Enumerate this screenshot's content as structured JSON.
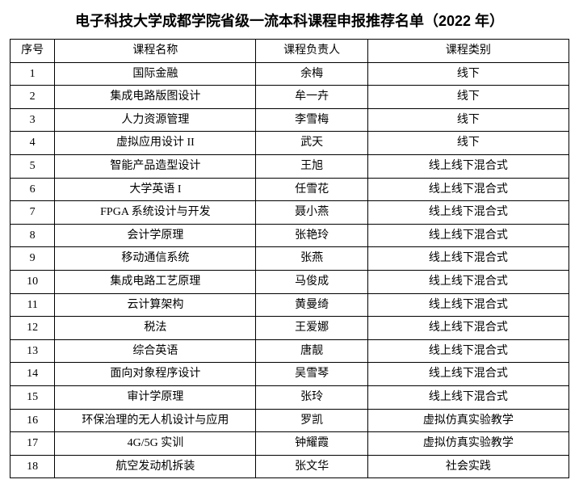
{
  "title": "电子科技大学成都学院省级一流本科课程申报推荐名单（2022 年）",
  "table": {
    "columns": [
      "序号",
      "课程名称",
      "课程负责人",
      "课程类别"
    ],
    "rows": [
      [
        "1",
        "国际金融",
        "余梅",
        "线下"
      ],
      [
        "2",
        "集成电路版图设计",
        "牟一卉",
        "线下"
      ],
      [
        "3",
        "人力资源管理",
        "李雪梅",
        "线下"
      ],
      [
        "4",
        "虚拟应用设计 II",
        "武天",
        "线下"
      ],
      [
        "5",
        "智能产品造型设计",
        "王旭",
        "线上线下混合式"
      ],
      [
        "6",
        "大学英语 I",
        "任雪花",
        "线上线下混合式"
      ],
      [
        "7",
        "FPGA 系统设计与开发",
        "聂小燕",
        "线上线下混合式"
      ],
      [
        "8",
        "会计学原理",
        "张艳玲",
        "线上线下混合式"
      ],
      [
        "9",
        "移动通信系统",
        "张燕",
        "线上线下混合式"
      ],
      [
        "10",
        "集成电路工艺原理",
        "马俊成",
        "线上线下混合式"
      ],
      [
        "11",
        "云计算架构",
        "黄曼绮",
        "线上线下混合式"
      ],
      [
        "12",
        "税法",
        "王爱娜",
        "线上线下混合式"
      ],
      [
        "13",
        "综合英语",
        "唐靓",
        "线上线下混合式"
      ],
      [
        "14",
        "面向对象程序设计",
        "吴雪琴",
        "线上线下混合式"
      ],
      [
        "15",
        "审计学原理",
        "张玲",
        "线上线下混合式"
      ],
      [
        "16",
        "环保治理的无人机设计与应用",
        "罗凯",
        "虚拟仿真实验教学"
      ],
      [
        "17",
        "4G/5G 实训",
        "钟耀霞",
        "虚拟仿真实验教学"
      ],
      [
        "18",
        "航空发动机拆装",
        "张文华",
        "社会实践"
      ]
    ]
  }
}
